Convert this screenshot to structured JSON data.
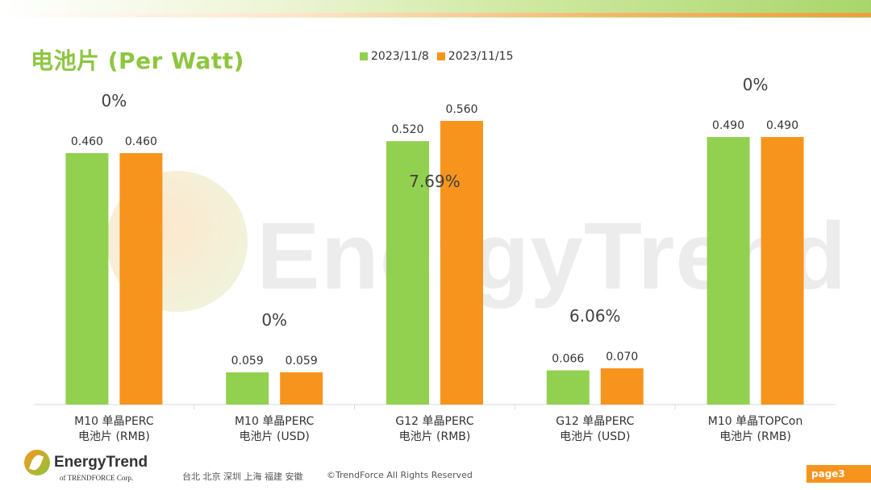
{
  "slide": {
    "title": "电池片 (Per Watt)",
    "watermark": "EnergyTrend",
    "logo_text": "EnergyTrend",
    "logo_sub": "of TRENDFORCE Corp.",
    "locations": "台北  北京  深圳  上海  福建  安徽",
    "copyright": "©TrendForce All Rights Reserved",
    "page": "page3"
  },
  "legend": [
    {
      "label": "2023/11/8",
      "color": "#92d050"
    },
    {
      "label": "2023/11/15",
      "color": "#f7941d"
    }
  ],
  "chart_data": {
    "type": "bar",
    "categories": [
      [
        "M10 单晶PERC",
        "电池片 (RMB)"
      ],
      [
        "M10 单晶PERC",
        "电池片 (USD)"
      ],
      [
        "G12 单晶PERC",
        "电池片 (RMB)"
      ],
      [
        "G12 单晶PERC",
        "电池片 (USD)"
      ],
      [
        "M10 单晶TOPCon",
        "电池片 (RMB)"
      ]
    ],
    "series": [
      {
        "name": "2023/11/8",
        "color": "#92d050",
        "values": [
          0.46,
          0.059,
          0.52,
          0.066,
          0.49
        ],
        "labels": [
          "0.460",
          "0.059",
          "0.520",
          "0.066",
          "0.490"
        ]
      },
      {
        "name": "2023/11/15",
        "color": "#f7941d",
        "values": [
          0.46,
          0.059,
          0.56,
          0.07,
          0.49
        ],
        "labels": [
          "0.460",
          "0.059",
          "0.560",
          "0.070",
          "0.490"
        ]
      }
    ],
    "changes": [
      "0%",
      "0%",
      "7.69%",
      "6.06%",
      "0%"
    ],
    "note": "Each category group is scaled independently (bars sized per group)."
  }
}
